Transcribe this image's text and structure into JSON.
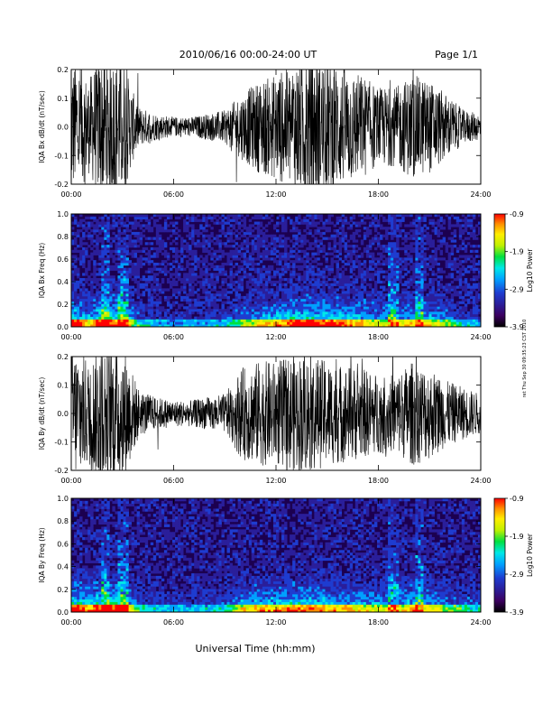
{
  "header": {
    "title": "2010/06/16  00:00-24:00 UT",
    "page": "Page 1/1"
  },
  "side_note": "ret Thu Sep 30 09:35:23 CST 2010",
  "colors": {
    "trace": "#000000",
    "spectrogram_background": "#1c0050",
    "colormap": [
      "#000000",
      "#3c0060",
      "#2a1e9a",
      "#1e3cd0",
      "#00a0ff",
      "#00e8e8",
      "#00e040",
      "#c0f000",
      "#ffee00",
      "#ff9000",
      "#ff0000"
    ]
  },
  "chart_data": [
    {
      "type": "line",
      "name": "bx-waveform",
      "ylabel": "IQA Bx dB/dt (nT/sec)",
      "ylim": [
        -0.2,
        0.2
      ],
      "yticks": [
        "-0.2",
        "-0.1",
        "0.0",
        "0.1",
        "0.2"
      ],
      "yticks_values": [
        -0.2,
        -0.1,
        0.0,
        0.1,
        0.2
      ],
      "xticks": [
        "00:00",
        "06:00",
        "12:00",
        "18:00",
        "24:00"
      ],
      "xlim": [
        0,
        24
      ],
      "envelope": {
        "hours": [
          0,
          0.5,
          1,
          1.5,
          2,
          2.5,
          3,
          3.5,
          4,
          5,
          6,
          7,
          8,
          9,
          10,
          11,
          12,
          13,
          14,
          15,
          16,
          17,
          18,
          19,
          20,
          21,
          22,
          23,
          24
        ],
        "amplitude": [
          0.2,
          0.2,
          0.14,
          0.2,
          0.22,
          0.2,
          0.22,
          0.12,
          0.06,
          0.04,
          0.03,
          0.03,
          0.04,
          0.05,
          0.1,
          0.14,
          0.16,
          0.2,
          0.22,
          0.2,
          0.18,
          0.16,
          0.12,
          0.12,
          0.16,
          0.14,
          0.1,
          0.05,
          0.04
        ]
      }
    },
    {
      "type": "heatmap",
      "name": "bx-spectrogram",
      "ylabel": "IQA Bx Freq (Hz)",
      "ylim": [
        0.0,
        1.0
      ],
      "yticks": [
        "0.0",
        "0.2",
        "0.4",
        "0.6",
        "0.8",
        "1.0"
      ],
      "yticks_values": [
        0.0,
        0.2,
        0.4,
        0.6,
        0.8,
        1.0
      ],
      "xticks": [
        "00:00",
        "06:00",
        "12:00",
        "18:00",
        "24:00"
      ],
      "xlim": [
        0,
        24
      ],
      "colorbar": {
        "label": "Log10 Power",
        "range": [
          -3.9,
          -0.9
        ],
        "ticks": [
          "-0.9",
          "-1.9",
          "-2.9",
          "-3.9"
        ],
        "ticks_values": [
          -0.9,
          -1.9,
          -2.9,
          -3.9
        ]
      }
    },
    {
      "type": "line",
      "name": "by-waveform",
      "ylabel": "IQA By dB/dt (nT/sec)",
      "ylim": [
        -0.2,
        0.2
      ],
      "yticks": [
        "-0.2",
        "-0.1",
        "0.0",
        "0.1",
        "0.2"
      ],
      "yticks_values": [
        -0.2,
        -0.1,
        0.0,
        0.1,
        0.2
      ],
      "xticks": [
        "00:00",
        "06:00",
        "12:00",
        "18:00",
        "24:00"
      ],
      "xlim": [
        0,
        24
      ],
      "envelope": {
        "hours": [
          0,
          0.5,
          1,
          1.5,
          2,
          2.5,
          3,
          3.5,
          4,
          5,
          6,
          7,
          8,
          9,
          10,
          11,
          12,
          13,
          14,
          15,
          16,
          17,
          18,
          19,
          20,
          21,
          22,
          23,
          24
        ],
        "amplitude": [
          0.2,
          0.2,
          0.16,
          0.2,
          0.22,
          0.2,
          0.22,
          0.14,
          0.07,
          0.05,
          0.04,
          0.04,
          0.05,
          0.06,
          0.14,
          0.16,
          0.16,
          0.18,
          0.18,
          0.16,
          0.15,
          0.14,
          0.12,
          0.12,
          0.16,
          0.14,
          0.1,
          0.08,
          0.06
        ]
      }
    },
    {
      "type": "heatmap",
      "name": "by-spectrogram",
      "ylabel": "IQA By Freq (Hz)",
      "ylim": [
        0.0,
        1.0
      ],
      "yticks": [
        "0.0",
        "0.2",
        "0.4",
        "0.6",
        "0.8",
        "1.0"
      ],
      "yticks_values": [
        0.0,
        0.2,
        0.4,
        0.6,
        0.8,
        1.0
      ],
      "xticks": [
        "00:00",
        "06:00",
        "12:00",
        "18:00",
        "24:00"
      ],
      "xlim": [
        0,
        24
      ],
      "colorbar": {
        "label": "Log10 Power",
        "range": [
          -3.9,
          -0.9
        ],
        "ticks": [
          "-0.9",
          "-1.9",
          "-2.9",
          "-3.9"
        ],
        "ticks_values": [
          -0.9,
          -1.9,
          -2.9,
          -3.9
        ]
      }
    }
  ],
  "xlabel": "Universal Time (hh:mm)"
}
